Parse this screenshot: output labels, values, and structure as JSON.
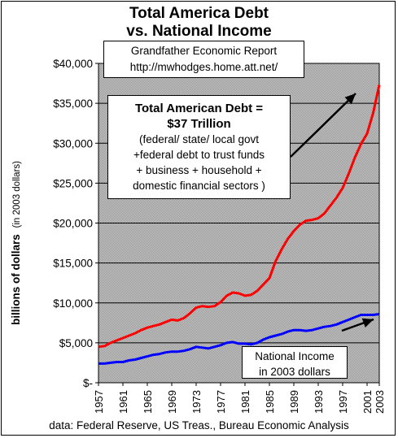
{
  "title_line1": "Total America Debt",
  "title_line2": "vs. National Income",
  "source_box": {
    "line1": "Grandfather Economic Report",
    "line2": "http://mwhodges.home.att.net/"
  },
  "debt_annotation": {
    "line1": "Total American Debt =",
    "line2": "$37 Trillion",
    "line3": "(federal/ state/ local govt",
    "line4": "+federal debt to trust funds",
    "line5": "+ business + household +",
    "line6": "domestic financial sectors )"
  },
  "income_annotation": {
    "line1": "National Income",
    "line2": "in 2003 dollars"
  },
  "footer": "data: Federal Reserve, US Treas., Bureau Economic Analysis",
  "colors": {
    "debt": "#ff0000",
    "income": "#0000ff",
    "plot_bg": "#c0c0c0"
  },
  "chart_data": {
    "type": "line",
    "ylabel": "billions of dollars",
    "ylabel_sub": "(in 2003 dollars)",
    "ylim": [
      0,
      40000
    ],
    "xlim": [
      1957,
      2003
    ],
    "yticks": [
      {
        "value": 0,
        "label": "$-"
      },
      {
        "value": 5000,
        "label": "$5,000"
      },
      {
        "value": 10000,
        "label": "$10,000"
      },
      {
        "value": 15000,
        "label": "$15,000"
      },
      {
        "value": 20000,
        "label": "$20,000"
      },
      {
        "value": 25000,
        "label": "$25,000"
      },
      {
        "value": 30000,
        "label": "$30,000"
      },
      {
        "value": 35000,
        "label": "$35,000"
      },
      {
        "value": 40000,
        "label": "$40,000"
      }
    ],
    "xticks": [
      "1957",
      "1961",
      "1965",
      "1969",
      "1973",
      "1977",
      "1981",
      "1985",
      "1989",
      "1993",
      "1997",
      "2001",
      "2003"
    ],
    "grid": "horizontal",
    "series": [
      {
        "key": "debt",
        "x": [
          1957,
          1958,
          1959,
          1960,
          1961,
          1962,
          1963,
          1964,
          1965,
          1966,
          1967,
          1968,
          1969,
          1970,
          1971,
          1972,
          1973,
          1974,
          1975,
          1976,
          1977,
          1978,
          1979,
          1980,
          1981,
          1982,
          1983,
          1984,
          1985,
          1986,
          1987,
          1988,
          1989,
          1990,
          1991,
          1992,
          1993,
          1994,
          1995,
          1996,
          1997,
          1998,
          1999,
          2000,
          2001,
          2002,
          2003
        ],
        "values": [
          4500,
          4600,
          5000,
          5300,
          5600,
          5900,
          6200,
          6600,
          6900,
          7100,
          7300,
          7600,
          7900,
          7800,
          8100,
          8700,
          9400,
          9600,
          9500,
          9600,
          10100,
          10900,
          11300,
          11200,
          10900,
          11000,
          11500,
          12300,
          13100,
          15200,
          16700,
          18000,
          19000,
          19800,
          20300,
          20400,
          20600,
          21200,
          22200,
          23200,
          24400,
          26200,
          28200,
          29900,
          31200,
          33800,
          37300
        ]
      },
      {
        "key": "income",
        "x": [
          1957,
          1958,
          1959,
          1960,
          1961,
          1962,
          1963,
          1964,
          1965,
          1966,
          1967,
          1968,
          1969,
          1970,
          1971,
          1972,
          1973,
          1974,
          1975,
          1976,
          1977,
          1978,
          1979,
          1980,
          1981,
          1982,
          1983,
          1984,
          1985,
          1986,
          1987,
          1988,
          1989,
          1990,
          1991,
          1992,
          1993,
          1994,
          1995,
          1996,
          1997,
          1998,
          1999,
          2000,
          2001,
          2002,
          2003
        ],
        "values": [
          2400,
          2400,
          2500,
          2600,
          2600,
          2800,
          2900,
          3100,
          3300,
          3500,
          3600,
          3800,
          3900,
          3900,
          4000,
          4200,
          4500,
          4400,
          4300,
          4500,
          4700,
          5000,
          5100,
          4900,
          4900,
          4800,
          5000,
          5400,
          5700,
          5900,
          6100,
          6400,
          6600,
          6600,
          6500,
          6600,
          6800,
          7000,
          7100,
          7300,
          7600,
          7900,
          8200,
          8500,
          8500,
          8500,
          8600
        ]
      }
    ]
  }
}
